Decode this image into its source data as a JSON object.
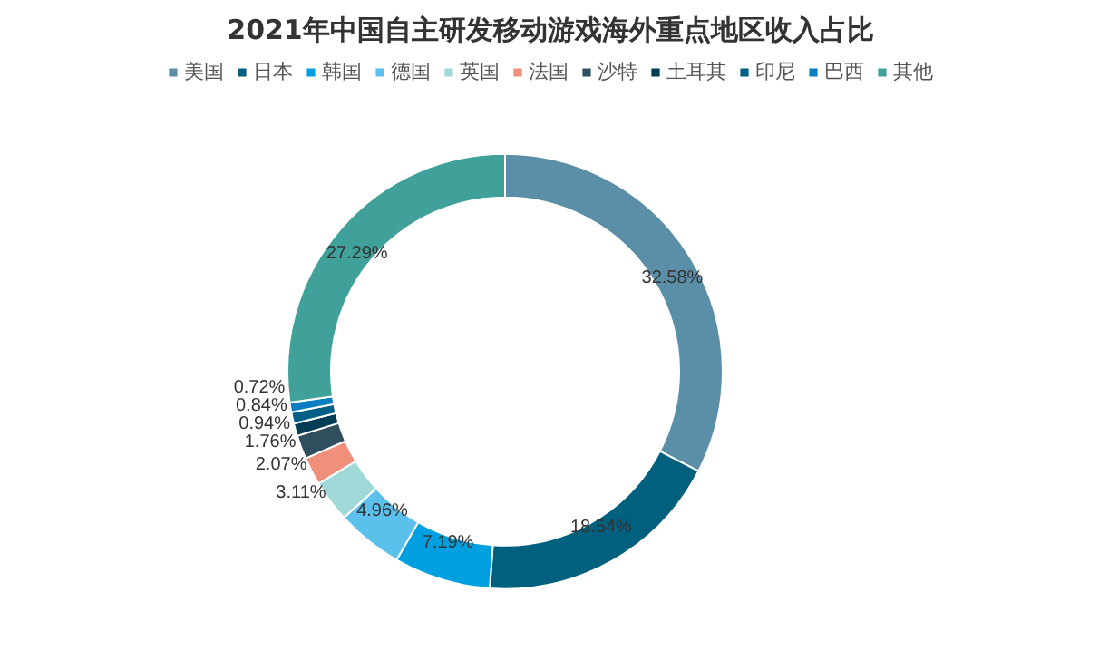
{
  "chart_data": {
    "type": "donut",
    "title": "2021年中国自主研发移动游戏海外重点地区收入占比",
    "categories": [
      "美国",
      "日本",
      "韩国",
      "德国",
      "英国",
      "法国",
      "沙特",
      "土耳其",
      "印尼",
      "巴西",
      "其他"
    ],
    "values": [
      32.58,
      18.54,
      7.19,
      4.96,
      3.11,
      2.07,
      1.76,
      0.94,
      0.84,
      0.72,
      27.29
    ],
    "colors": [
      "#5b8fa8",
      "#00607e",
      "#00a0e0",
      "#5bc0eb",
      "#a0d8d8",
      "#f0907a",
      "#2f4f5f",
      "#003d55",
      "#005f87",
      "#0a7ec2",
      "#40a09a"
    ],
    "value_labels": [
      "32.58%",
      "18.54%",
      "7.19%",
      "4.96%",
      "3.11%",
      "2.07%",
      "1.76%",
      "0.94%",
      "0.84%",
      "0.72%",
      "27.29%"
    ],
    "legend": "top"
  }
}
